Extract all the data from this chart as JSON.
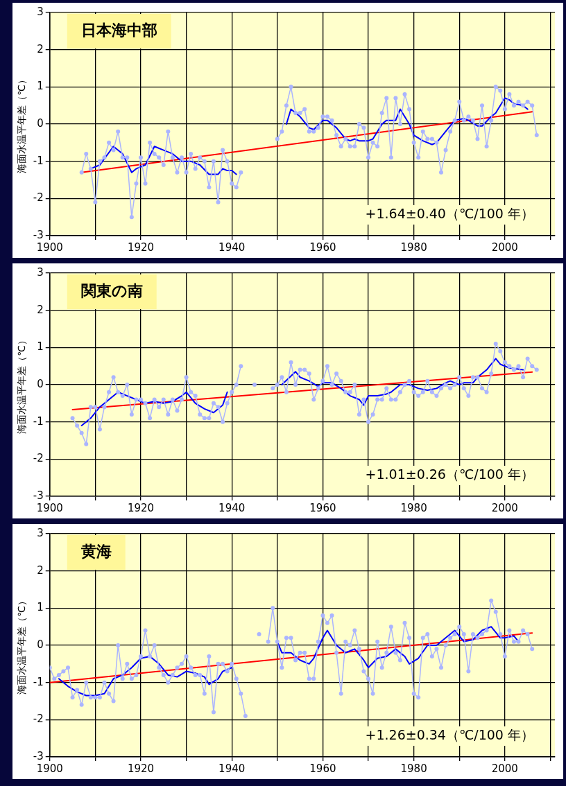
{
  "chart_data": [
    {
      "type": "line",
      "title": "日本海中部",
      "ylabel": "海面水温平年差（℃）",
      "annotations": [
        "+1.64±0.40（℃/100 年）"
      ],
      "xlim": [
        1900,
        2011
      ],
      "xticks": [
        1900,
        {
          "value": 1910,
          "label": null
        },
        1920,
        {
          "value": 1930,
          "label": null
        },
        1940,
        {
          "value": 1950,
          "label": null
        },
        1960,
        {
          "value": 1970,
          "label": null
        },
        1980,
        {
          "value": 1990,
          "label": null
        },
        2000,
        {
          "value": 2010,
          "label": null
        }
      ],
      "ylim": [
        -3,
        3
      ],
      "yticks": [
        -3,
        -2,
        -1,
        0,
        1,
        2,
        3
      ],
      "grid": true,
      "series": [
        {
          "color": "#aab4ff",
          "marker": "circle",
          "x": [
            1907,
            1908,
            1909,
            1910,
            1911,
            1912,
            1913,
            1914,
            1915,
            1916,
            1917,
            1918,
            1919,
            1920,
            1921,
            1922,
            1923,
            1924,
            1925,
            1926,
            1927,
            1928,
            1929,
            1930,
            1931,
            1932,
            1933,
            1934,
            1935,
            1936,
            1937,
            1938,
            1939,
            1940,
            1941,
            1942,
            1946,
            1950,
            1951,
            1952,
            1953,
            1954,
            1955,
            1956,
            1957,
            1958,
            1959,
            1960,
            1961,
            1962,
            1963,
            1964,
            1965,
            1966,
            1967,
            1968,
            1969,
            1970,
            1971,
            1972,
            1973,
            1974,
            1975,
            1976,
            1977,
            1978,
            1979,
            1980,
            1981,
            1982,
            1983,
            1984,
            1985,
            1986,
            1987,
            1988,
            1989,
            1990,
            1991,
            1992,
            1993,
            1994,
            1995,
            1996,
            1997,
            1998,
            1999,
            2000,
            2001,
            2002,
            2003,
            2004,
            2005,
            2006,
            2007
          ],
          "values": [
            -1.3,
            -0.8,
            -1.2,
            -2.1,
            -1.0,
            -0.9,
            -0.5,
            -0.7,
            -0.2,
            -0.9,
            -0.9,
            -2.5,
            -1.6,
            -0.9,
            -1.6,
            -0.5,
            -0.8,
            -0.9,
            -1.1,
            -0.2,
            -0.9,
            -1.3,
            -0.9,
            -1.3,
            -0.8,
            -1.2,
            -0.9,
            -1.0,
            -1.7,
            -1.0,
            -2.1,
            -0.7,
            -1.0,
            -1.6,
            -1.7,
            -1.3,
            null,
            -0.4,
            -0.2,
            0.5,
            1.0,
            0.3,
            0.3,
            0.4,
            -0.2,
            -0.2,
            -0.1,
            0.2,
            0.2,
            0.1,
            -0.3,
            -0.6,
            -0.4,
            -0.6,
            -0.6,
            0.0,
            -0.1,
            -0.9,
            -0.5,
            -0.6,
            0.3,
            0.7,
            -0.9,
            0.7,
            0.0,
            0.8,
            0.4,
            -0.5,
            -0.9,
            -0.2,
            -0.4,
            -0.4,
            -0.5,
            -1.3,
            -0.7,
            -0.2,
            0.1,
            0.6,
            0.1,
            0.2,
            0.1,
            -0.4,
            0.5,
            -0.6,
            0.1,
            1.0,
            0.9,
            0.4,
            0.8,
            0.5,
            0.6,
            0.5,
            0.6,
            0.5,
            -0.3
          ]
        },
        {
          "color": "#0000ff",
          "marker": "none",
          "x": [
            1909,
            1911,
            1914,
            1916,
            1918,
            1919,
            1921,
            1923,
            1925,
            1927,
            1929,
            1931,
            1933,
            1935,
            1937,
            1938,
            1939,
            1940,
            1941,
            1946,
            1952,
            1953,
            1955,
            1957,
            1958,
            1960,
            1961,
            1963,
            1965,
            1966,
            1967,
            1968,
            1970,
            1971,
            1973,
            1974,
            1976,
            1977,
            1979,
            1980,
            1982,
            1984,
            1985,
            1987,
            1989,
            1991,
            1992,
            1994,
            1995,
            1997,
            1998,
            2000,
            2001,
            2002,
            2004,
            2005
          ],
          "values": [
            -1.2,
            -1.1,
            -0.6,
            -0.8,
            -1.3,
            -1.2,
            -1.1,
            -0.6,
            -0.7,
            -0.8,
            -1.0,
            -1.0,
            -1.1,
            -1.35,
            -1.35,
            -1.2,
            -1.25,
            -1.25,
            -1.35,
            null,
            0.0,
            0.4,
            0.2,
            -0.1,
            -0.15,
            0.1,
            0.1,
            -0.1,
            -0.4,
            -0.45,
            -0.4,
            -0.45,
            -0.45,
            -0.4,
            0.0,
            0.1,
            0.1,
            0.4,
            0.0,
            -0.3,
            -0.45,
            -0.55,
            -0.5,
            -0.2,
            0.1,
            0.15,
            0.1,
            -0.05,
            -0.05,
            0.2,
            0.3,
            0.7,
            0.65,
            0.55,
            0.5,
            0.4
          ]
        },
        {
          "color": "#ff0000",
          "marker": "none",
          "x": [
            1907,
            2006
          ],
          "values": [
            -1.3,
            0.33
          ]
        }
      ]
    },
    {
      "type": "line",
      "title": "関東の南",
      "ylabel": "海面水温平年差（℃）",
      "annotations": [
        "+1.01±0.26（℃/100 年）"
      ],
      "xlim": [
        1900,
        2011
      ],
      "xticks": [
        1900,
        {
          "value": 1910,
          "label": null
        },
        1920,
        {
          "value": 1930,
          "label": null
        },
        1940,
        {
          "value": 1950,
          "label": null
        },
        1960,
        {
          "value": 1970,
          "label": null
        },
        1980,
        {
          "value": 1990,
          "label": null
        },
        2000,
        {
          "value": 2010,
          "label": null
        }
      ],
      "ylim": [
        -3,
        3
      ],
      "yticks": [
        -3,
        -2,
        -1,
        0,
        1,
        2,
        3
      ],
      "grid": true,
      "series": [
        {
          "color": "#aab4ff",
          "marker": "circle",
          "x": [
            1905,
            1906,
            1907,
            1908,
            1909,
            1910,
            1911,
            1912,
            1913,
            1914,
            1915,
            1916,
            1917,
            1918,
            1919,
            1920,
            1921,
            1922,
            1923,
            1924,
            1925,
            1926,
            1927,
            1928,
            1929,
            1930,
            1931,
            1932,
            1933,
            1934,
            1935,
            1936,
            1937,
            1938,
            1939,
            1940,
            1941,
            1942,
            1943,
            1945,
            1947,
            1949,
            1950,
            1951,
            1952,
            1953,
            1954,
            1955,
            1956,
            1957,
            1958,
            1959,
            1960,
            1961,
            1962,
            1963,
            1964,
            1965,
            1966,
            1967,
            1968,
            1969,
            1970,
            1971,
            1972,
            1973,
            1974,
            1975,
            1976,
            1977,
            1978,
            1979,
            1980,
            1981,
            1982,
            1983,
            1984,
            1985,
            1986,
            1987,
            1988,
            1989,
            1990,
            1991,
            1992,
            1993,
            1994,
            1995,
            1996,
            1997,
            1998,
            1999,
            2000,
            2001,
            2002,
            2003,
            2004,
            2005,
            2006,
            2007
          ],
          "values": [
            -0.9,
            -1.1,
            -1.3,
            -1.6,
            -0.6,
            -0.6,
            -1.2,
            -0.6,
            -0.2,
            0.2,
            -0.2,
            -0.3,
            0.0,
            -0.8,
            -0.4,
            -0.4,
            -0.5,
            -0.9,
            -0.4,
            -0.6,
            -0.4,
            -0.8,
            -0.4,
            -0.7,
            -0.4,
            0.2,
            -0.2,
            -0.3,
            -0.8,
            -0.9,
            -0.9,
            -0.5,
            -0.6,
            -1.0,
            -0.5,
            -0.2,
            0.0,
            0.5,
            null,
            0.0,
            null,
            -0.1,
            0.0,
            0.2,
            -0.2,
            0.6,
            0.0,
            0.4,
            0.4,
            0.3,
            -0.4,
            -0.1,
            0.1,
            0.5,
            0.0,
            0.3,
            0.1,
            -0.2,
            -0.2,
            0.0,
            -0.8,
            -0.4,
            -1.0,
            -0.8,
            -0.4,
            -0.4,
            -0.1,
            -0.4,
            -0.4,
            -0.2,
            0.0,
            0.1,
            -0.2,
            -0.3,
            -0.2,
            0.1,
            -0.2,
            -0.3,
            -0.1,
            0.0,
            -0.1,
            0.0,
            0.2,
            -0.1,
            -0.3,
            0.2,
            0.2,
            -0.1,
            -0.2,
            0.3,
            1.1,
            0.9,
            0.6,
            0.5,
            0.4,
            0.5,
            0.2,
            0.7,
            0.5,
            0.4
          ]
        },
        {
          "color": "#0000ff",
          "marker": "none",
          "x": [
            1907,
            1909,
            1911,
            1913,
            1915,
            1917,
            1919,
            1921,
            1923,
            1925,
            1927,
            1929,
            1930,
            1932,
            1934,
            1936,
            1938,
            1939,
            1945,
            1951,
            1954,
            1955,
            1957,
            1959,
            1960,
            1962,
            1964,
            1966,
            1968,
            1969,
            1970,
            1972,
            1974,
            1975,
            1977,
            1979,
            1981,
            1983,
            1985,
            1987,
            1988,
            1990,
            1991,
            1993,
            1994,
            1996,
            1998,
            1999,
            2001,
            2004
          ],
          "values": [
            -1.1,
            -0.9,
            -0.6,
            -0.4,
            -0.2,
            -0.3,
            -0.4,
            -0.5,
            -0.45,
            -0.5,
            -0.45,
            -0.3,
            -0.2,
            -0.5,
            -0.65,
            -0.75,
            -0.55,
            -0.2,
            null,
            0.0,
            0.35,
            0.2,
            0.1,
            -0.05,
            0.05,
            0.05,
            -0.1,
            -0.3,
            -0.4,
            -0.55,
            -0.3,
            -0.3,
            -0.25,
            -0.2,
            0.0,
            0.0,
            -0.1,
            -0.15,
            -0.1,
            0.05,
            0.1,
            0.0,
            0.05,
            0.05,
            0.2,
            0.4,
            0.7,
            0.55,
            0.45,
            0.4
          ]
        },
        {
          "color": "#ff0000",
          "marker": "none",
          "x": [
            1905,
            2006
          ],
          "values": [
            -0.67,
            0.34
          ]
        }
      ]
    },
    {
      "type": "line",
      "title": "黄海",
      "ylabel": "海面水温平年差（℃）",
      "annotations": [
        "+1.26±0.34（℃/100 年）"
      ],
      "xlim": [
        1900,
        2011
      ],
      "xticks": [
        1900,
        {
          "value": 1910,
          "label": null
        },
        1920,
        {
          "value": 1930,
          "label": null
        },
        1940,
        {
          "value": 1950,
          "label": null
        },
        1960,
        {
          "value": 1970,
          "label": null
        },
        1980,
        {
          "value": 1990,
          "label": null
        },
        2000,
        {
          "value": 2010,
          "label": null
        }
      ],
      "ylim": [
        -3,
        3
      ],
      "yticks": [
        -3,
        -2,
        -1,
        0,
        1,
        2,
        3
      ],
      "grid": true,
      "series": [
        {
          "color": "#aab4ff",
          "marker": "circle",
          "x": [
            1900,
            1901,
            1902,
            1903,
            1904,
            1905,
            1906,
            1907,
            1908,
            1909,
            1910,
            1911,
            1912,
            1913,
            1914,
            1915,
            1916,
            1917,
            1918,
            1919,
            1920,
            1921,
            1922,
            1923,
            1924,
            1925,
            1926,
            1927,
            1928,
            1929,
            1930,
            1931,
            1932,
            1933,
            1934,
            1935,
            1936,
            1937,
            1938,
            1939,
            1940,
            1941,
            1942,
            1943,
            1944,
            1946,
            1947,
            1948,
            1949,
            1950,
            1951,
            1952,
            1953,
            1954,
            1955,
            1956,
            1957,
            1958,
            1959,
            1960,
            1961,
            1962,
            1963,
            1964,
            1965,
            1966,
            1967,
            1968,
            1969,
            1970,
            1971,
            1972,
            1973,
            1974,
            1975,
            1976,
            1977,
            1978,
            1979,
            1980,
            1981,
            1982,
            1983,
            1984,
            1985,
            1986,
            1987,
            1988,
            1989,
            1990,
            1991,
            1992,
            1993,
            1994,
            1995,
            1996,
            1997,
            1998,
            1999,
            2000,
            2001,
            2002,
            2003,
            2004,
            2005,
            2006
          ],
          "values": [
            -0.6,
            -0.9,
            -0.8,
            -0.7,
            -0.6,
            -1.4,
            -1.2,
            -1.6,
            -1.0,
            -1.4,
            -1.4,
            -1.4,
            -1.0,
            -1.3,
            -1.5,
            0.0,
            -0.9,
            -0.5,
            -0.9,
            -0.8,
            -0.3,
            0.4,
            -0.3,
            0.0,
            -0.6,
            -0.8,
            -1.0,
            -0.8,
            -0.6,
            -0.5,
            -0.3,
            -0.6,
            -0.8,
            -0.8,
            -1.3,
            -0.3,
            -1.8,
            -0.5,
            -0.5,
            -0.7,
            -0.5,
            -0.9,
            -1.3,
            -1.9,
            null,
            0.3,
            null,
            0.1,
            1.0,
            0.1,
            -0.6,
            0.2,
            0.2,
            -0.4,
            -0.2,
            -0.2,
            -0.9,
            -0.9,
            0.1,
            0.8,
            0.6,
            0.8,
            -0.2,
            -1.3,
            0.1,
            0.0,
            0.4,
            -0.1,
            -0.7,
            -0.9,
            -1.3,
            0.1,
            -0.6,
            -0.2,
            0.5,
            -0.2,
            -0.4,
            0.6,
            0.2,
            -1.3,
            -1.4,
            0.2,
            0.3,
            -0.3,
            -0.1,
            -0.6,
            0.0,
            0.2,
            0.3,
            0.5,
            0.3,
            -0.7,
            0.3,
            0.2,
            0.3,
            0.4,
            1.2,
            0.9,
            0.3,
            -0.3,
            0.4,
            0.1,
            0.1,
            0.4,
            0.3,
            -0.1
          ]
        },
        {
          "color": "#0000ff",
          "marker": "none",
          "x": [
            1902,
            1904,
            1906,
            1908,
            1910,
            1912,
            1914,
            1916,
            1918,
            1920,
            1922,
            1924,
            1926,
            1928,
            1930,
            1932,
            1934,
            1935,
            1937,
            1938,
            1940,
            1945,
            1950,
            1951,
            1953,
            1955,
            1957,
            1958,
            1960,
            1961,
            1963,
            1965,
            1967,
            1969,
            1970,
            1972,
            1974,
            1976,
            1978,
            1979,
            1981,
            1983,
            1985,
            1987,
            1989,
            1991,
            1993,
            1995,
            1997,
            1999,
            2000,
            2002,
            2003
          ],
          "values": [
            -0.9,
            -1.1,
            -1.25,
            -1.35,
            -1.35,
            -1.3,
            -0.9,
            -0.8,
            -0.6,
            -0.35,
            -0.3,
            -0.5,
            -0.8,
            -0.85,
            -0.7,
            -0.75,
            -0.85,
            -1.05,
            -0.9,
            -0.7,
            -0.6,
            null,
            0.1,
            -0.2,
            -0.2,
            -0.4,
            -0.5,
            -0.35,
            0.2,
            0.4,
            0.0,
            -0.2,
            -0.1,
            -0.4,
            -0.6,
            -0.35,
            -0.3,
            -0.1,
            -0.3,
            -0.5,
            -0.35,
            0.0,
            0.0,
            0.2,
            0.4,
            0.1,
            0.15,
            0.4,
            0.5,
            0.2,
            0.2,
            0.25,
            0.1
          ]
        },
        {
          "color": "#ff0000",
          "marker": "none",
          "x": [
            1900,
            2006
          ],
          "values": [
            -1.0,
            0.33
          ]
        }
      ]
    }
  ]
}
